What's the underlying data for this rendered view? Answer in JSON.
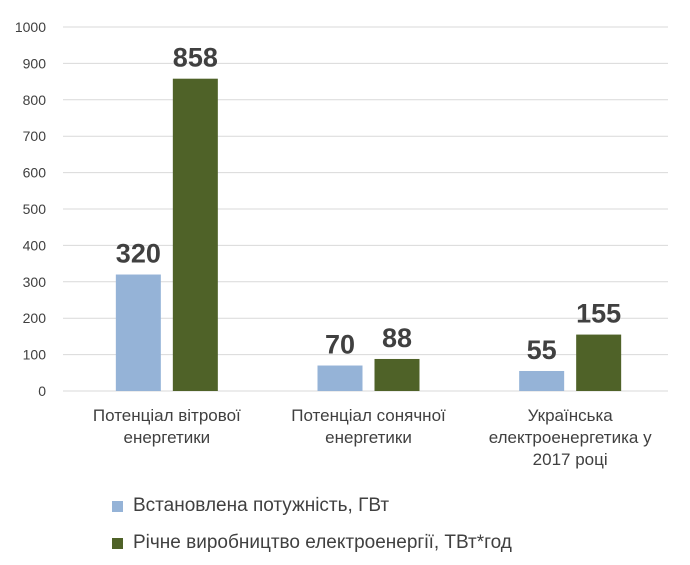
{
  "chart_data": {
    "type": "bar",
    "categories": [
      [
        "Потенціал вітрової",
        "енергетики"
      ],
      [
        "Потенціал сонячної",
        "енергетики"
      ],
      [
        "Українська",
        "електроенергетика у",
        "2017 році"
      ]
    ],
    "series": [
      {
        "name": "Встановлена потужність, ГВт",
        "values": [
          320,
          70,
          55
        ],
        "color": "#95b3d7"
      },
      {
        "name": "Річне виробництво електроенергії, ТВт*год",
        "values": [
          858,
          88,
          155
        ],
        "color": "#4f6228"
      }
    ],
    "ylim": [
      0,
      1000
    ],
    "yticks": [
      0,
      100,
      200,
      300,
      400,
      500,
      600,
      700,
      800,
      900,
      1000
    ],
    "grid": true,
    "legend_position": "bottom",
    "data_labels": true
  }
}
